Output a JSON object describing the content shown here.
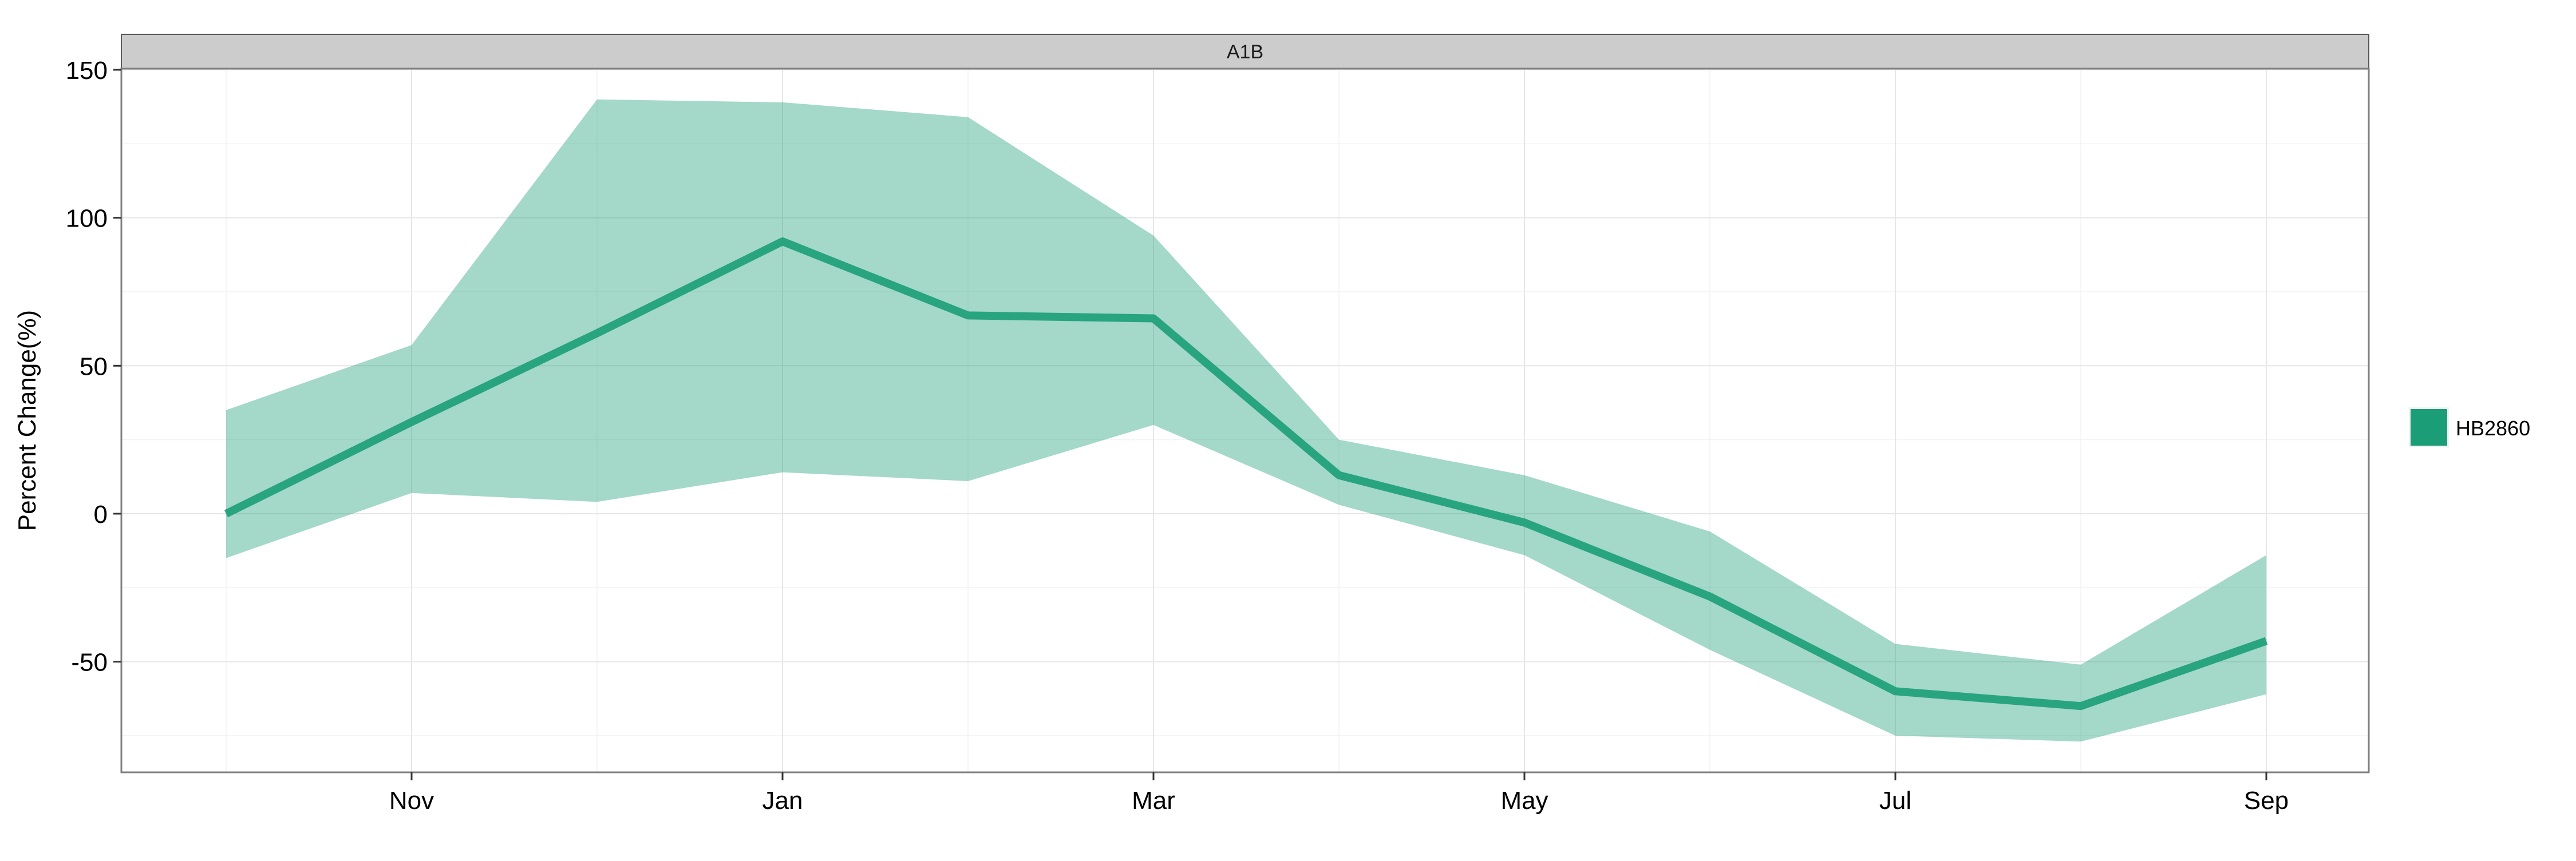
{
  "chart_data": {
    "type": "area",
    "panel_title": "A1B",
    "ylabel": "Percent Change(%)",
    "xlabel": "",
    "ylim": [
      -87,
      150
    ],
    "x_tick_labels": [
      "Nov",
      "Jan",
      "Mar",
      "May",
      "Jul",
      "Sep"
    ],
    "y_tick_labels": [
      "150",
      "100",
      "50",
      "0",
      "-50"
    ],
    "y_ticks": [
      150,
      100,
      50,
      0,
      -50
    ],
    "x": [
      "Oct",
      "Nov",
      "Dec",
      "Jan",
      "Feb",
      "Mar",
      "Apr",
      "May",
      "Jun",
      "Jul",
      "Aug",
      "Sep"
    ],
    "series": [
      {
        "name": "HB2860",
        "color": "#1b9e77",
        "values": [
          0,
          31,
          61,
          92,
          67,
          66,
          13,
          -3,
          -28,
          -60,
          -65,
          -43
        ],
        "lower": [
          -15,
          7,
          4,
          14,
          11,
          30,
          3,
          -14,
          -46,
          -75,
          -77,
          -61
        ],
        "upper": [
          35,
          57,
          140,
          139,
          134,
          94,
          25,
          13,
          -6,
          -44,
          -51,
          -14
        ]
      }
    ],
    "legend": {
      "position": "right",
      "entries": [
        "HB2860"
      ]
    },
    "grid": true
  }
}
